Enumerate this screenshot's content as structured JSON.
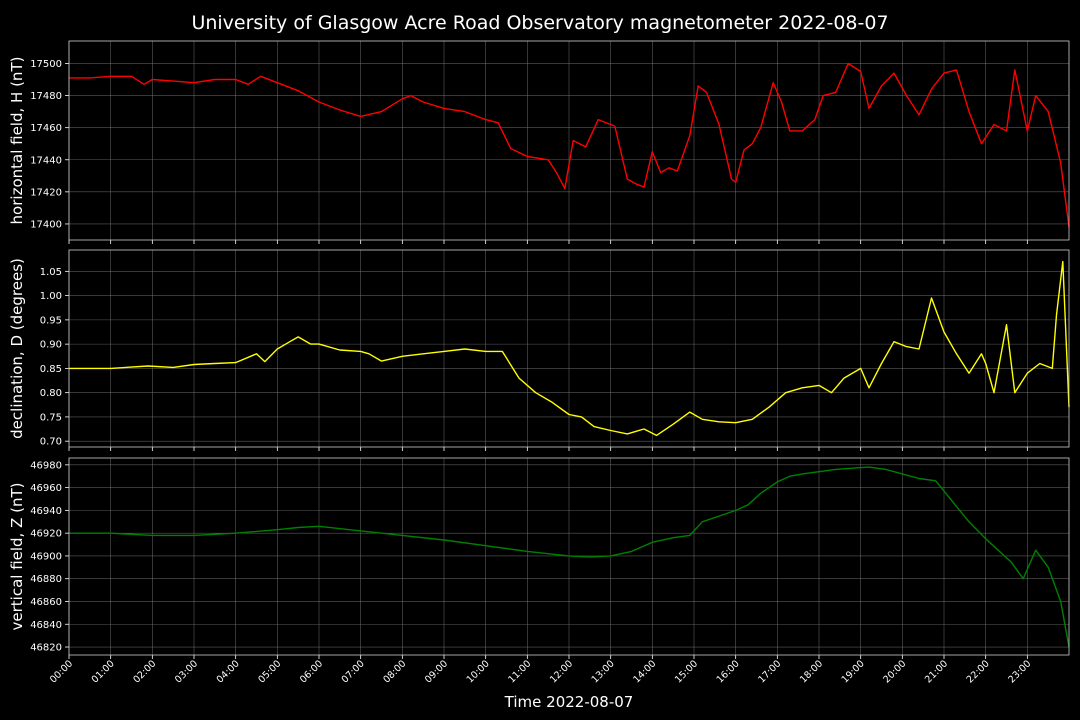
{
  "chart_data": {
    "title": "University of Glasgow Acre Road Observatory magnetometer 2022-08-07",
    "xlabel": "Time 2022-08-07",
    "x_ticks": [
      "00:00",
      "01:00",
      "02:00",
      "03:00",
      "04:00",
      "05:00",
      "06:00",
      "07:00",
      "08:00",
      "09:00",
      "10:00",
      "11:00",
      "12:00",
      "13:00",
      "14:00",
      "15:00",
      "16:00",
      "17:00",
      "18:00",
      "19:00",
      "20:00",
      "21:00",
      "22:00",
      "23:00"
    ],
    "xlim": [
      0,
      24
    ],
    "grid": true,
    "panels": [
      {
        "type": "line",
        "ylabel": "horizontal field, H (nT)",
        "color": "#ff0000",
        "ylim": [
          17390,
          17514
        ],
        "yticks": [
          17400,
          17420,
          17440,
          17460,
          17480,
          17500
        ],
        "x": [
          0,
          0.5,
          1,
          1.5,
          1.8,
          2,
          2.5,
          3,
          3.5,
          4,
          4.3,
          4.6,
          5,
          5.5,
          6,
          6.5,
          7,
          7.5,
          8,
          8.2,
          8.5,
          9,
          9.5,
          10,
          10.3,
          10.6,
          11,
          11.5,
          11.7,
          11.9,
          12.1,
          12.4,
          12.7,
          13.1,
          13.4,
          13.6,
          13.8,
          14,
          14.2,
          14.4,
          14.6,
          14.9,
          15.1,
          15.3,
          15.6,
          15.9,
          16,
          16.2,
          16.4,
          16.6,
          16.9,
          17.1,
          17.3,
          17.6,
          17.9,
          18.1,
          18.4,
          18.7,
          19,
          19.2,
          19.5,
          19.8,
          20.1,
          20.4,
          20.7,
          21,
          21.3,
          21.6,
          21.9,
          22.2,
          22.5,
          22.7,
          23,
          23.2,
          23.5,
          23.8,
          24
        ],
        "values": [
          17491,
          17491,
          17492,
          17492,
          17487,
          17490,
          17489,
          17488,
          17490,
          17490,
          17487,
          17492,
          17488,
          17483,
          17476,
          17471,
          17467,
          17470,
          17478,
          17480,
          17476,
          17472,
          17470,
          17465,
          17463,
          17447,
          17442,
          17440,
          17432,
          17422,
          17452,
          17448,
          17465,
          17461,
          17428,
          17425,
          17423,
          17445,
          17432,
          17435,
          17433,
          17455,
          17486,
          17482,
          17462,
          17428,
          17426,
          17446,
          17450,
          17460,
          17488,
          17476,
          17458,
          17458,
          17465,
          17480,
          17482,
          17500,
          17495,
          17472,
          17486,
          17494,
          17480,
          17468,
          17484,
          17494,
          17496,
          17470,
          17450,
          17462,
          17458,
          17496,
          17458,
          17480,
          17470,
          17438,
          17398
        ]
      },
      {
        "type": "line",
        "ylabel": "declination, D (degrees)",
        "color": "#ffff00",
        "ylim": [
          0.688,
          1.094
        ],
        "yticks": [
          0.7,
          0.75,
          0.8,
          0.85,
          0.9,
          0.95,
          1.0,
          1.05
        ],
        "x": [
          0,
          1,
          1.9,
          2.5,
          3,
          3.5,
          4,
          4.5,
          4.7,
          5,
          5.3,
          5.5,
          5.8,
          6,
          6.5,
          7,
          7.2,
          7.5,
          8,
          8.5,
          9,
          9.5,
          10,
          10.4,
          10.8,
          11.2,
          11.6,
          12,
          12.3,
          12.6,
          13,
          13.4,
          13.8,
          14.1,
          14.5,
          14.9,
          15.2,
          15.6,
          16,
          16.4,
          16.8,
          17.2,
          17.6,
          18,
          18.3,
          18.6,
          19,
          19.2,
          19.5,
          19.8,
          20.1,
          20.4,
          20.7,
          21,
          21.3,
          21.6,
          21.9,
          22,
          22.2,
          22.5,
          22.7,
          23,
          23.3,
          23.6,
          23.7,
          23.85,
          24
        ],
        "values": [
          0.85,
          0.85,
          0.855,
          0.852,
          0.858,
          0.86,
          0.862,
          0.88,
          0.864,
          0.89,
          0.905,
          0.915,
          0.9,
          0.9,
          0.888,
          0.885,
          0.88,
          0.865,
          0.875,
          0.88,
          0.885,
          0.89,
          0.885,
          0.885,
          0.83,
          0.8,
          0.78,
          0.755,
          0.75,
          0.73,
          0.722,
          0.715,
          0.725,
          0.712,
          0.735,
          0.76,
          0.745,
          0.74,
          0.738,
          0.745,
          0.77,
          0.8,
          0.81,
          0.815,
          0.8,
          0.83,
          0.85,
          0.81,
          0.86,
          0.905,
          0.895,
          0.89,
          0.995,
          0.925,
          0.88,
          0.84,
          0.88,
          0.86,
          0.8,
          0.94,
          0.8,
          0.84,
          0.86,
          0.85,
          0.96,
          1.07,
          0.77
        ]
      },
      {
        "type": "line",
        "ylabel": "vertical field, Z (nT)",
        "color": "#008000",
        "ylim": [
          46813,
          46986
        ],
        "yticks": [
          46820,
          46840,
          46860,
          46880,
          46900,
          46920,
          46940,
          46960,
          46980
        ],
        "x": [
          0,
          1,
          2,
          3,
          4,
          5,
          5.5,
          6,
          7,
          8,
          9,
          10,
          11,
          11.5,
          12,
          12.5,
          13,
          13.5,
          14,
          14.5,
          14.9,
          15.2,
          15.6,
          16,
          16.3,
          16.6,
          17,
          17.3,
          17.6,
          18,
          18.4,
          18.8,
          19.2,
          19.6,
          20,
          20.4,
          20.8,
          21.2,
          21.6,
          22,
          22.3,
          22.6,
          22.9,
          23.2,
          23.5,
          23.8,
          24
        ],
        "values": [
          46920,
          46920,
          46918,
          46918,
          46920,
          46923,
          46925,
          46926,
          46922,
          46918,
          46914,
          46909,
          46904,
          46902,
          46900,
          46899,
          46900,
          46904,
          46912,
          46916,
          46918,
          46930,
          46935,
          46940,
          46945,
          46955,
          46965,
          46970,
          46972,
          46974,
          46976,
          46977,
          46978,
          46976,
          46972,
          46968,
          46966,
          46948,
          46930,
          46915,
          46905,
          46895,
          46880,
          46905,
          46890,
          46860,
          46820
        ]
      }
    ]
  }
}
